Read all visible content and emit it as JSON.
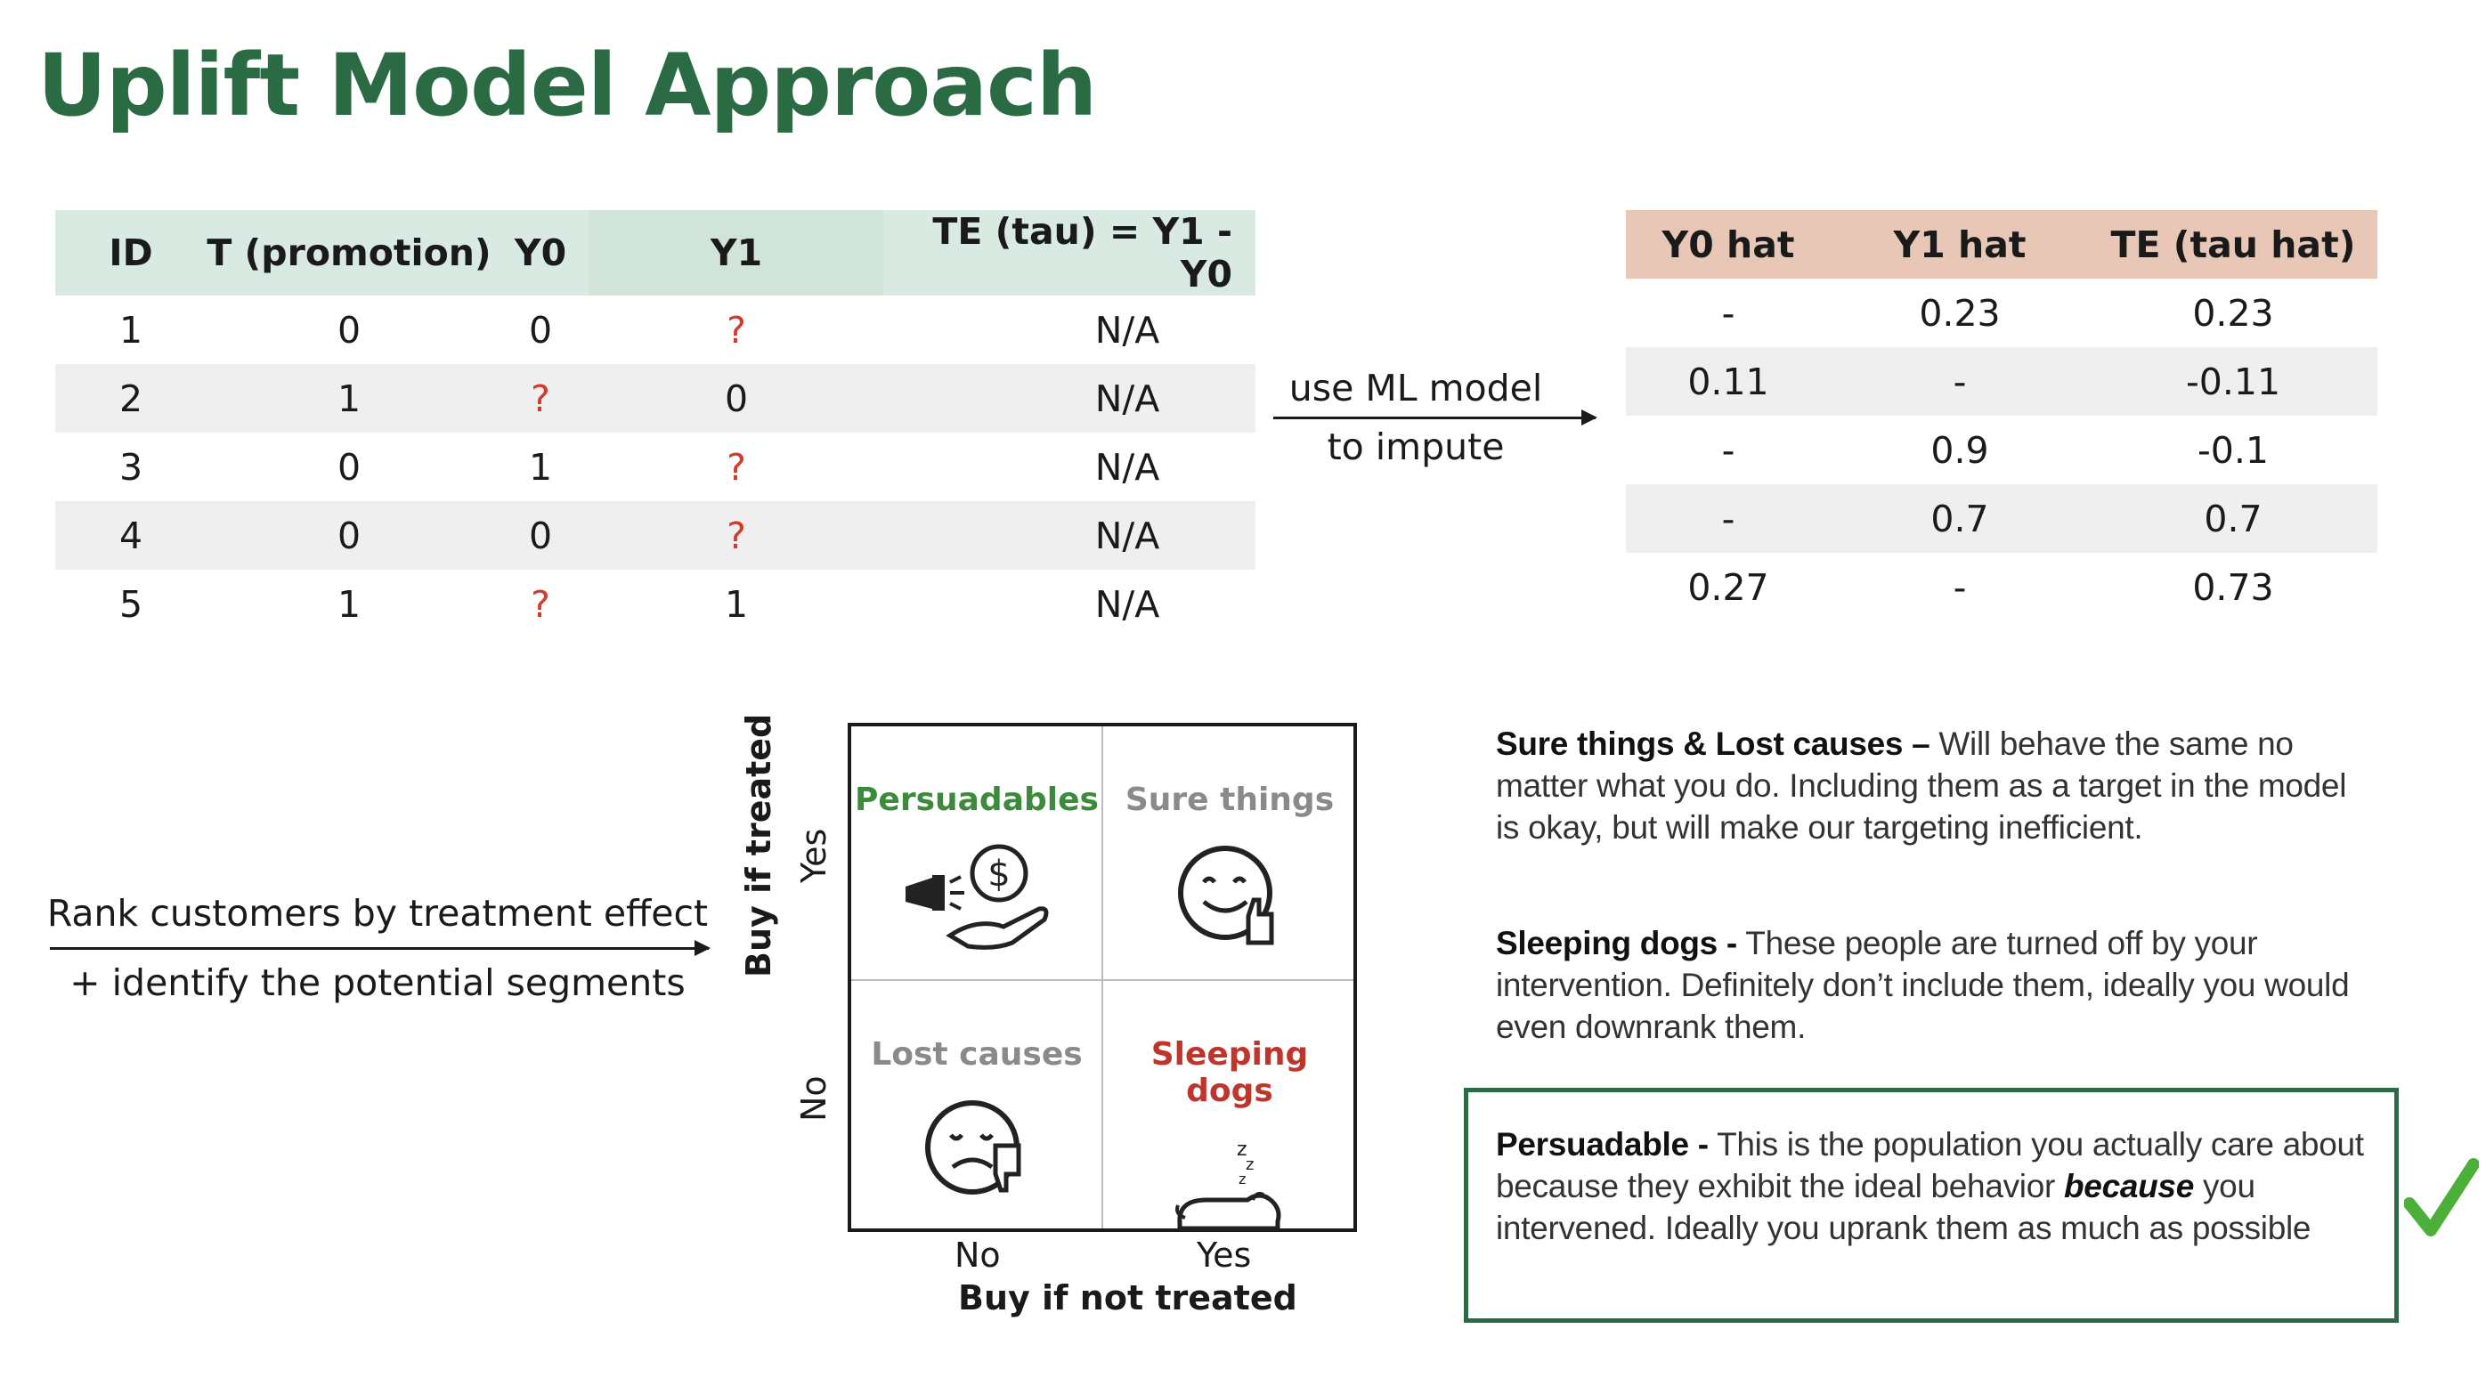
{
  "title": "Uplift Model Approach",
  "observed_table": {
    "headers": [
      "ID",
      "T (promotion)",
      "Y0",
      "Y1",
      "TE (tau) = Y1 - Y0"
    ],
    "rows": [
      [
        "1",
        "0",
        "0",
        "?",
        "N/A"
      ],
      [
        "2",
        "1",
        "?",
        "0",
        "N/A"
      ],
      [
        "3",
        "0",
        "1",
        "?",
        "N/A"
      ],
      [
        "4",
        "0",
        "0",
        "?",
        "N/A"
      ],
      [
        "5",
        "1",
        "?",
        "1",
        "N/A"
      ]
    ]
  },
  "impute_arrow": {
    "line1": "use ML model",
    "line2": "to impute"
  },
  "predicted_table": {
    "headers": [
      "Y0 hat",
      "Y1 hat",
      "TE (tau hat)"
    ],
    "rows": [
      [
        "-",
        "0.23",
        "0.23"
      ],
      [
        "0.11",
        "-",
        "-0.11"
      ],
      [
        "-",
        "0.9",
        "-0.1"
      ],
      [
        "-",
        "0.7",
        "0.7"
      ],
      [
        "0.27",
        "-",
        "0.73"
      ]
    ]
  },
  "rank_arrow": {
    "line1": "Rank customers by treatment effect",
    "line2": "+ identify the potential segments"
  },
  "quadrant": {
    "y_axis_label": "Buy if treated",
    "x_axis_label": "Buy if not treated",
    "y_yes": "Yes",
    "y_no": "No",
    "x_no": "No",
    "x_yes": "Yes",
    "cells": {
      "top_left": {
        "label": "Persuadables",
        "icon": "megaphone-money-icon"
      },
      "top_right": {
        "label": "Sure things",
        "icon": "happy-thumbs-up-icon"
      },
      "bottom_left": {
        "label": "Lost causes",
        "icon": "sad-thumbs-down-icon"
      },
      "bottom_right": {
        "label": "Sleeping dogs",
        "icon": "sleeping-dog-icon"
      }
    }
  },
  "descriptions": {
    "sure_lost": {
      "title": "Sure things & Lost causes –",
      "text": " Will behave the same no matter what you do. Including them as a target in the model is okay, but will make our targeting inefficient."
    },
    "sleeping": {
      "title": "Sleeping dogs -",
      "text": " These people are turned off by your intervention. Definitely don’t include them, ideally you would even downrank them."
    },
    "persuadable": {
      "title": "Persuadable -",
      "text1": " This is the population you actually care about because they exhibit the ideal behavior ",
      "emph": "because",
      "text2": " you intervened. Ideally you uprank them as much as possible"
    }
  },
  "colors": {
    "title_green": "#2a6b44",
    "question_red": "#d33a2c",
    "check_green": "#4caf3a"
  }
}
